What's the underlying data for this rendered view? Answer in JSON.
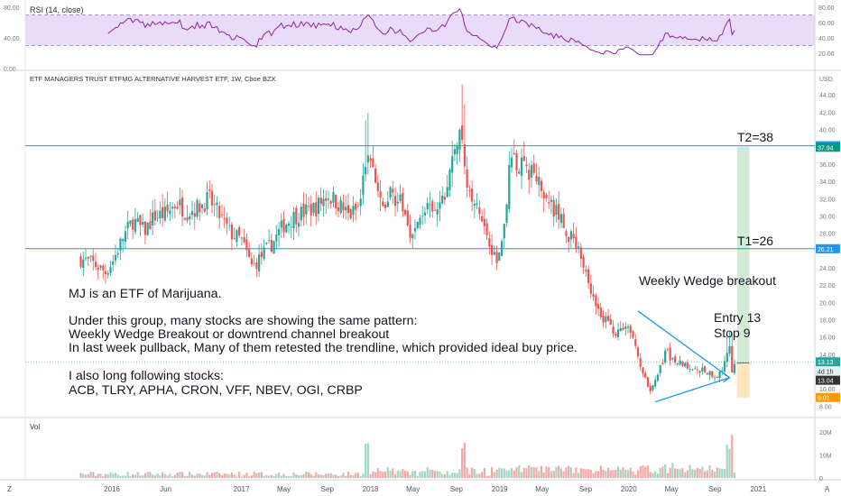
{
  "rsi_panel": {
    "label": "RSI (14, close)",
    "scale": [
      {
        "v": 80,
        "left": "80.00",
        "right": "80.00"
      },
      {
        "v": 60,
        "left": "",
        "right": "60.00"
      },
      {
        "v": 40,
        "left": "40.00",
        "right": "40.00"
      },
      {
        "v": 20,
        "left": "",
        "right": "20.00"
      },
      {
        "v": 0,
        "left": "0.00",
        "right": ""
      }
    ],
    "upper": 70,
    "lower": 30,
    "band_color": "#e9dcf8",
    "line_color": "#8e24aa"
  },
  "price_panel": {
    "title": "ETF MANAGERS TRUST ETFMG ALTERNATIVE HARVEST ETF, 1W, Cboe BZX",
    "currency": "USD",
    "ticks": [
      "44.00",
      "42.00",
      "40.00",
      "38.00",
      "36.00",
      "34.00",
      "32.00",
      "30.00",
      "28.00",
      "26.00",
      "24.00",
      "22.00",
      "20.00",
      "18.00",
      "16.00",
      "14.00",
      "12.00",
      "10.00",
      "8.00"
    ],
    "tick_values": [
      44,
      42,
      40,
      38,
      36,
      34,
      32,
      30,
      28,
      26,
      24,
      22,
      20,
      18,
      16,
      14,
      12,
      10,
      8
    ],
    "ylim": [
      7,
      46
    ],
    "hlines": [
      {
        "value": 38.12,
        "label": "38.12",
        "color": "#2196f3",
        "annotation": "T2=38"
      },
      {
        "value": 26.21,
        "label": "26.21",
        "color": "#2196f3",
        "annotation": "T1=26"
      }
    ],
    "price_labels": [
      {
        "value": 37.94,
        "label": "37.94",
        "color": "#089981"
      },
      {
        "value": 13.13,
        "label": "13.13",
        "color": "#26a69a"
      },
      {
        "value": 12.05,
        "label": "4d 1h",
        "color": "#e0f2f1",
        "text_color": "#333333"
      },
      {
        "value": 11.0,
        "label": "13.04",
        "color": "#333333"
      },
      {
        "value": 9.01,
        "label": "9.01",
        "color": "#ff9800"
      }
    ],
    "up_color": "#26a69a",
    "down_color": "#ef5350"
  },
  "annotations": {
    "note_lines": [
      "MJ is an ETF of Marijuana.",
      "",
      "Under this group, many stocks are showing the same pattern:",
      "Weekly Wedge Breakout or downtrend channel breakout",
      "In last week pullback, Many of them retested the trendline, which provided ideal buy price.",
      "",
      "I also long following stocks:",
      "ACB, TLRY,   APHA, CRON, VFF, NBEV, OGI, CRBP"
    ],
    "wedge_label": "Weekly Wedge breakout",
    "entry_label": "Entry 13",
    "stop_label": "Stop 9",
    "entry": 13,
    "stop": 9,
    "target": 38,
    "wedge": {
      "top_start": {
        "date": "2020-01-27",
        "value": 19.0
      },
      "bottom_start": {
        "date": "2020-03-16",
        "value": 8.5
      },
      "apex": {
        "date": "2020-10-12",
        "value": 11.3
      }
    },
    "reward_color": "#c8e6c9",
    "risk_color": "#ffe0b2"
  },
  "volume_panel": {
    "label": "Vol",
    "ticks": [
      {
        "v": 20,
        "label": "20M"
      },
      {
        "v": 10,
        "label": "10M"
      },
      {
        "v": 0,
        "label": "0"
      }
    ],
    "ylim": [
      0,
      25
    ]
  },
  "time_axis": {
    "labels": [
      "2016",
      "Jun",
      "2017",
      "May",
      "Sep",
      "2018",
      "May",
      "Sep",
      "2019",
      "May",
      "Sep",
      "2020",
      "May",
      "Sep",
      "2021"
    ],
    "label_dates": [
      "2016-01-01",
      "2016-06-01",
      "2017-01-01",
      "2017-05-01",
      "2017-09-01",
      "2018-01-01",
      "2018-05-01",
      "2018-09-01",
      "2019-01-01",
      "2019-05-01",
      "2019-09-01",
      "2020-01-01",
      "2020-05-01",
      "2020-09-01",
      "2021-01-01"
    ],
    "range": [
      "2015-05-01",
      "2021-06-10"
    ],
    "left_corner": "Z",
    "right_corner": "A"
  },
  "chart_data": {
    "type": "candlestick",
    "title": "ETF MANAGERS TRUST ETFMG ALTERNATIVE HARVEST ETF, 1W, Cboe BZX",
    "ylabel": "USD",
    "xlabel": "",
    "ylim": [
      7,
      46
    ],
    "grid": false,
    "close_series": {
      "dates": [
        "2015-10-05",
        "2015-11-09",
        "2015-12-14",
        "2016-01-04",
        "2016-02-01",
        "2016-03-01",
        "2016-04-01",
        "2016-05-01",
        "2016-06-01",
        "2016-07-01",
        "2016-08-01",
        "2016-09-01",
        "2016-10-01",
        "2016-11-01",
        "2016-12-01",
        "2017-01-01",
        "2017-02-01",
        "2017-03-01",
        "2017-04-01",
        "2017-05-01",
        "2017-06-01",
        "2017-07-01",
        "2017-08-01",
        "2017-09-01",
        "2017-10-01",
        "2017-11-01",
        "2017-12-01",
        "2017-12-20",
        "2018-01-08",
        "2018-02-01",
        "2018-03-01",
        "2018-04-01",
        "2018-05-01",
        "2018-06-01",
        "2018-07-01",
        "2018-08-01",
        "2018-09-01",
        "2018-09-20",
        "2018-10-01",
        "2018-11-01",
        "2018-12-01",
        "2018-12-24",
        "2019-01-15",
        "2019-02-01",
        "2019-03-01",
        "2019-04-01",
        "2019-05-01",
        "2019-06-01",
        "2019-07-01",
        "2019-08-01",
        "2019-09-01",
        "2019-10-01",
        "2019-11-01",
        "2019-12-01",
        "2020-01-01",
        "2020-02-01",
        "2020-03-01",
        "2020-03-20",
        "2020-04-15",
        "2020-05-01",
        "2020-06-01",
        "2020-07-01",
        "2020-08-01",
        "2020-09-01",
        "2020-09-20",
        "2020-10-12",
        "2020-10-20",
        "2020-10-26"
      ],
      "values": [
        25.0,
        24.5,
        23.5,
        24.8,
        27.5,
        29.5,
        28.2,
        30.0,
        30.2,
        31.5,
        30.5,
        31.0,
        32.0,
        30.0,
        28.0,
        27.2,
        24.0,
        25.5,
        27.0,
        29.0,
        30.0,
        30.5,
        31.0,
        32.5,
        31.5,
        30.0,
        31.0,
        37.0,
        35.5,
        30.5,
        33.0,
        31.0,
        27.5,
        31.0,
        30.0,
        32.5,
        39.0,
        38.5,
        33.0,
        30.5,
        27.5,
        24.5,
        29.5,
        36.5,
        36.0,
        35.0,
        33.5,
        31.0,
        29.0,
        26.5,
        24.0,
        19.5,
        17.5,
        16.5,
        17.0,
        13.0,
        10.0,
        11.0,
        14.5,
        13.5,
        13.0,
        12.5,
        12.0,
        11.5,
        12.0,
        14.5,
        11.5,
        13.0
      ]
    },
    "candle_count": 268,
    "levels": {
      "T1": 26.21,
      "T2": 38.12,
      "entry": 13,
      "stop": 9
    }
  }
}
